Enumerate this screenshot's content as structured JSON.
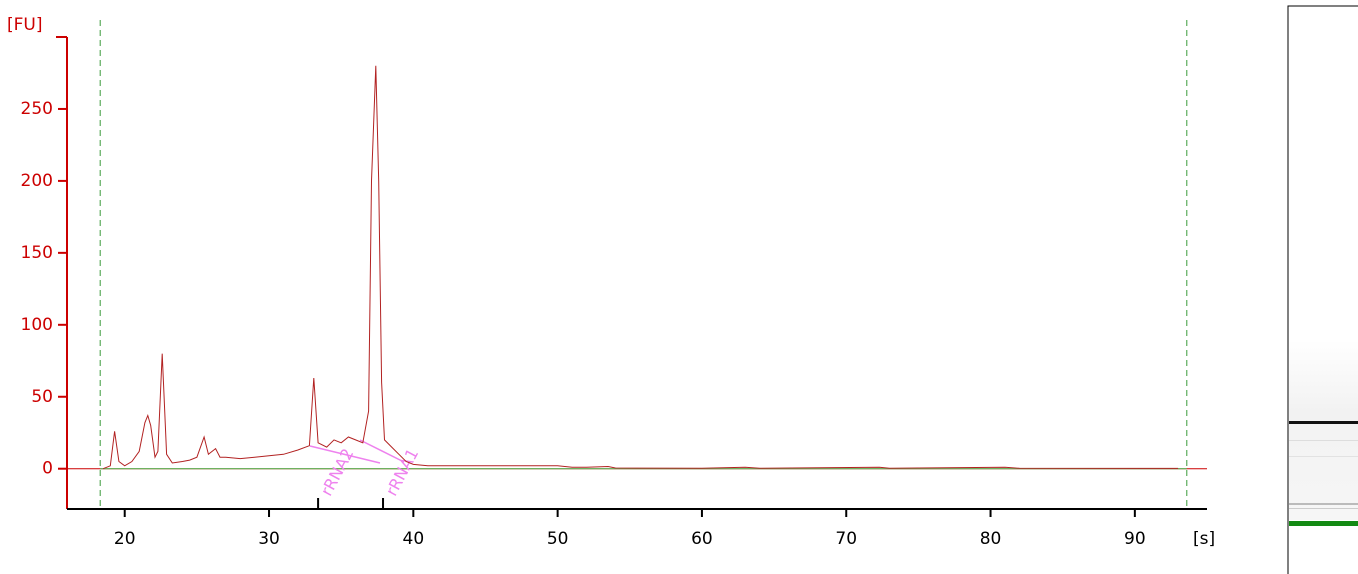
{
  "chart_data": {
    "type": "line",
    "y_label": "[FU]",
    "x_label": "[s]",
    "x": [
      18.5,
      19.0,
      19.3,
      19.6,
      20.0,
      20.5,
      21.0,
      21.4,
      21.6,
      21.8,
      22.1,
      22.3,
      22.6,
      22.9,
      23.3,
      24.0,
      24.5,
      25.0,
      25.5,
      25.8,
      26.3,
      26.6,
      27.0,
      28.0,
      29.0,
      30.0,
      31.0,
      32.0,
      32.8,
      33.1,
      33.4,
      34.0,
      34.5,
      35.0,
      35.5,
      36.0,
      36.5,
      36.9,
      37.1,
      37.4,
      37.6,
      37.8,
      38.0,
      38.5,
      39.0,
      39.5,
      40.0,
      41.0,
      50.0,
      51.0,
      52.0,
      53.5,
      54.0,
      60.0,
      63.0,
      64.0,
      72.3,
      73.0,
      81.0,
      82.0,
      93.0
    ],
    "values": [
      0,
      2,
      26,
      5,
      2,
      5,
      12,
      32,
      37,
      30,
      8,
      12,
      80,
      10,
      4,
      5,
      6,
      8,
      22,
      10,
      14,
      8,
      8,
      7,
      8,
      9,
      10,
      13,
      16,
      63,
      18,
      15,
      20,
      18,
      22,
      20,
      18,
      40,
      200,
      280,
      200,
      60,
      20,
      15,
      10,
      5,
      3,
      2,
      2,
      1,
      1,
      1.5,
      0.5,
      0.3,
      1,
      0.3,
      1,
      0.3,
      1,
      0.3,
      0.2
    ],
    "color": "#b22222",
    "axis_color": "#cc0000",
    "baseline_color": "#5cb85c",
    "xlim": [
      16,
      95
    ],
    "ylim": [
      -28,
      300
    ],
    "xticks": [
      20,
      30,
      40,
      50,
      60,
      70,
      80,
      90
    ],
    "yticks": [
      0,
      50,
      100,
      150,
      200,
      250
    ],
    "window": [
      18.3,
      93.6
    ],
    "annotations": [
      {
        "label": "rRNA2",
        "x": 33.4
      },
      {
        "label": "rRNA1",
        "x": 37.9
      }
    ]
  }
}
